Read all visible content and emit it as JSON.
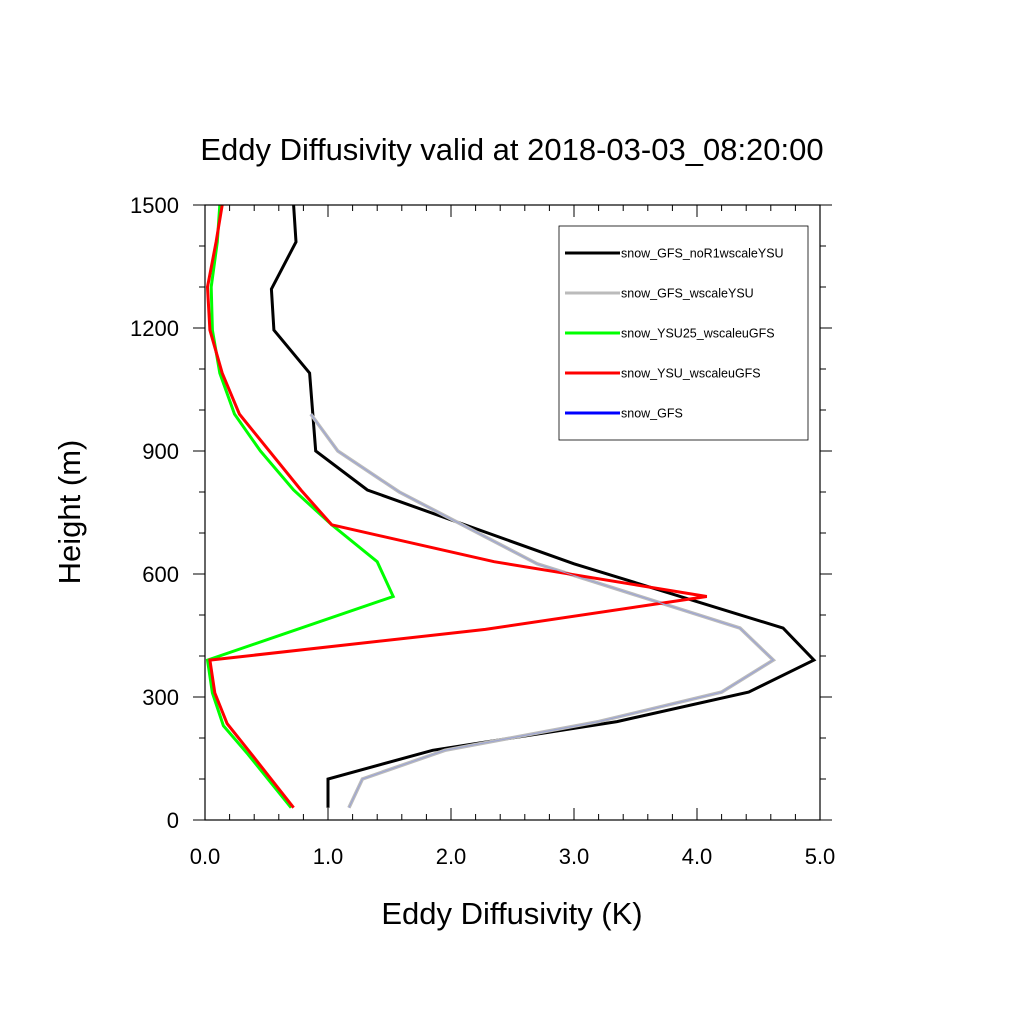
{
  "chart_data": {
    "type": "line",
    "title": "Eddy Diffusivity valid at 2018-03-03_08:20:00",
    "xlabel": "Eddy Diffusivity (K)",
    "ylabel": "Height (m)",
    "xlim": [
      0,
      5
    ],
    "ylim": [
      0,
      1500
    ],
    "x_ticks": [
      0,
      1,
      2,
      3,
      4,
      5
    ],
    "x_tick_labels": [
      "0.0",
      "1.0",
      "2.0",
      "3.0",
      "4.0",
      "5.0"
    ],
    "y_ticks": [
      0,
      300,
      600,
      900,
      1200,
      1500
    ],
    "y_tick_labels": [
      "0",
      "300",
      "600",
      "900",
      "1200",
      "1500"
    ],
    "grid": false,
    "legend_position": "top-right",
    "series": [
      {
        "name": "snow_GFS_noR1wscaleYSU",
        "color": "#000000",
        "points": [
          [
            1.0,
            30
          ],
          [
            1.0,
            100
          ],
          [
            1.85,
            170
          ],
          [
            3.35,
            240
          ],
          [
            4.42,
            312
          ],
          [
            4.95,
            390
          ],
          [
            4.7,
            468
          ],
          [
            3.0,
            625
          ],
          [
            1.32,
            805
          ],
          [
            0.9,
            900
          ],
          [
            0.85,
            1090
          ],
          [
            0.56,
            1195
          ],
          [
            0.54,
            1295
          ],
          [
            0.74,
            1410
          ],
          [
            0.72,
            1500
          ]
        ]
      },
      {
        "name": "snow_GFS_wscaleYSU",
        "color": "#bbbbbb",
        "points": [
          [
            1.17,
            30
          ],
          [
            1.28,
            100
          ],
          [
            1.95,
            170
          ],
          [
            3.2,
            240
          ],
          [
            4.2,
            312
          ],
          [
            4.62,
            390
          ],
          [
            4.35,
            468
          ],
          [
            2.7,
            625
          ],
          [
            1.58,
            800
          ],
          [
            1.08,
            900
          ],
          [
            0.86,
            990
          ]
        ]
      },
      {
        "name": "snow_YSU25_wscaleuGFS",
        "color": "#00ff00",
        "points": [
          [
            0.7,
            30
          ],
          [
            0.35,
            160
          ],
          [
            0.15,
            230
          ],
          [
            0.06,
            310
          ],
          [
            0.02,
            390
          ],
          [
            1.53,
            545
          ],
          [
            1.4,
            630
          ],
          [
            1.03,
            720
          ],
          [
            0.72,
            805
          ],
          [
            0.45,
            900
          ],
          [
            0.24,
            990
          ],
          [
            0.12,
            1090
          ],
          [
            0.06,
            1195
          ],
          [
            0.05,
            1300
          ],
          [
            0.1,
            1410
          ],
          [
            0.12,
            1500
          ]
        ]
      },
      {
        "name": "snow_YSU_wscaleuGFS",
        "color": "#ff0000",
        "points": [
          [
            0.72,
            30
          ],
          [
            0.38,
            160
          ],
          [
            0.18,
            235
          ],
          [
            0.08,
            310
          ],
          [
            0.04,
            390
          ],
          [
            2.28,
            465
          ],
          [
            4.08,
            545
          ],
          [
            2.35,
            630
          ],
          [
            1.03,
            720
          ],
          [
            0.78,
            805
          ],
          [
            0.28,
            990
          ],
          [
            0.14,
            1090
          ],
          [
            0.04,
            1195
          ],
          [
            0.02,
            1300
          ],
          [
            0.09,
            1410
          ],
          [
            0.14,
            1500
          ]
        ]
      },
      {
        "name": "snow_GFS",
        "color": "#0000ff",
        "points": []
      }
    ]
  }
}
